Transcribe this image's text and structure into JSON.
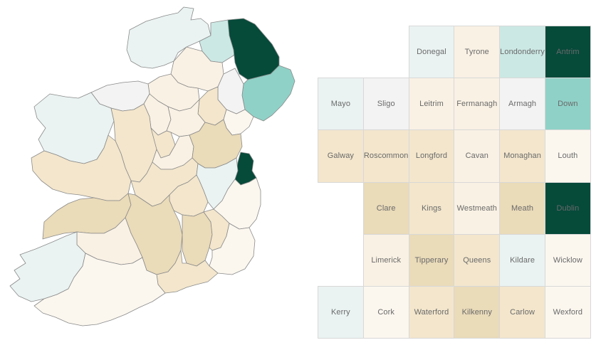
{
  "colors": {
    "stroke": "#8a8a8a",
    "tile_border": "#d8d8d8",
    "label": "#6a6a6a",
    "scale": [
      "#fbf7ef",
      "#f9f1e4",
      "#f3e6cc",
      "#eadbb9",
      "#f3f3f3",
      "#eaf3f2",
      "#cbe8e4",
      "#8fd1c7",
      "#064a3a"
    ]
  },
  "counties": [
    {
      "name": "Donegal",
      "level": 5
    },
    {
      "name": "Tyrone",
      "level": 1
    },
    {
      "name": "Londonderry",
      "level": 6
    },
    {
      "name": "Antrim",
      "level": 8
    },
    {
      "name": "Mayo",
      "level": 5
    },
    {
      "name": "Sligo",
      "level": 4
    },
    {
      "name": "Leitrim",
      "level": 1
    },
    {
      "name": "Fermanagh",
      "level": 1
    },
    {
      "name": "Armagh",
      "level": 4
    },
    {
      "name": "Down",
      "level": 7
    },
    {
      "name": "Galway",
      "level": 2
    },
    {
      "name": "Roscommon",
      "level": 2
    },
    {
      "name": "Longford",
      "level": 2
    },
    {
      "name": "Cavan",
      "level": 1
    },
    {
      "name": "Monaghan",
      "level": 2
    },
    {
      "name": "Louth",
      "level": 0
    },
    {
      "name": "Clare",
      "level": 3
    },
    {
      "name": "Kings",
      "level": 2
    },
    {
      "name": "Westmeath",
      "level": 1
    },
    {
      "name": "Meath",
      "level": 3
    },
    {
      "name": "Dublin",
      "level": 8
    },
    {
      "name": "Limerick",
      "level": 1
    },
    {
      "name": "Tipperary",
      "level": 3
    },
    {
      "name": "Queens",
      "level": 2
    },
    {
      "name": "Kildare",
      "level": 5
    },
    {
      "name": "Wicklow",
      "level": 0
    },
    {
      "name": "Kerry",
      "level": 5
    },
    {
      "name": "Cork",
      "level": 0
    },
    {
      "name": "Waterford",
      "level": 2
    },
    {
      "name": "Kilkenny",
      "level": 3
    },
    {
      "name": "Carlow",
      "level": 2
    },
    {
      "name": "Wexford",
      "level": 0
    }
  ]
}
